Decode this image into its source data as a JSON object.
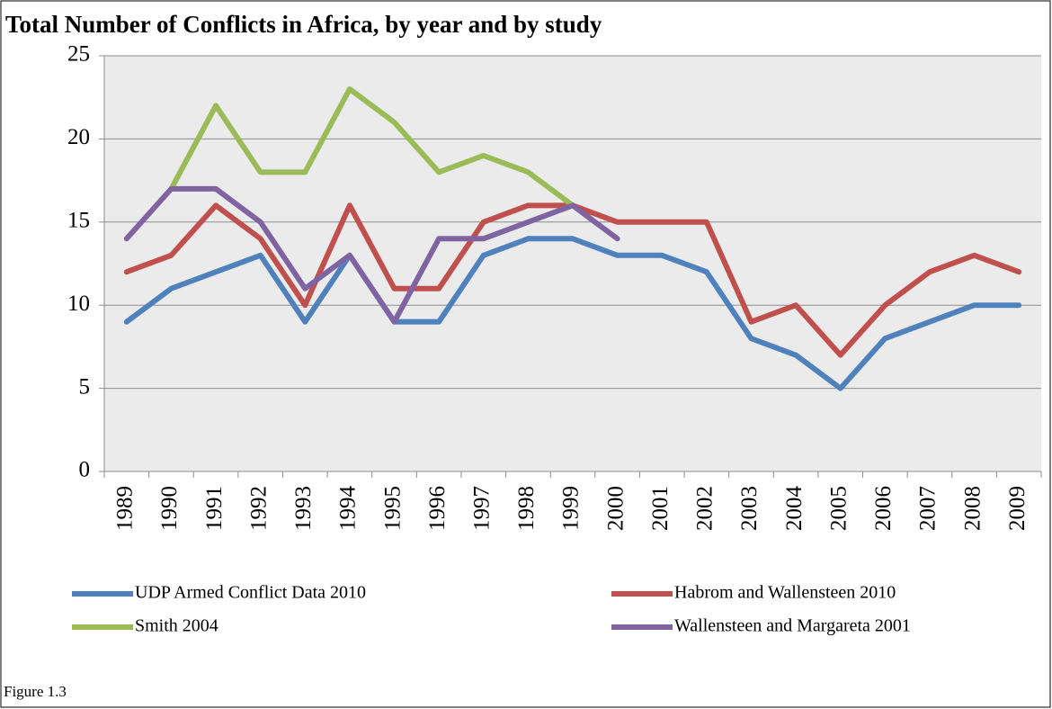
{
  "chart_data": {
    "type": "line",
    "title": "Total Number of Conflicts in Africa, by year and by study",
    "caption": "Figure 1.3",
    "categories": [
      "1989",
      "1990",
      "1991",
      "1992",
      "1993",
      "1994",
      "1995",
      "1996",
      "1997",
      "1998",
      "1999",
      "2000",
      "2001",
      "2002",
      "2003",
      "2004",
      "2005",
      "2006",
      "2007",
      "2008",
      "2009"
    ],
    "series": [
      {
        "name": "UDP Armed Conflict Data 2010",
        "color": "#4f81bd",
        "values": [
          9,
          11,
          12,
          13,
          9,
          13,
          9,
          9,
          13,
          14,
          14,
          13,
          13,
          12,
          8,
          7,
          5,
          8,
          9,
          10,
          10
        ]
      },
      {
        "name": "Habrom and Wallensteen 2010",
        "color": "#c0504d",
        "values": [
          12,
          13,
          16,
          14,
          10,
          16,
          11,
          11,
          15,
          16,
          16,
          15,
          15,
          15,
          9,
          10,
          7,
          10,
          12,
          13,
          12
        ]
      },
      {
        "name": "Smith 2004",
        "color": "#9bbb59",
        "values": [
          null,
          17,
          22,
          18,
          18,
          23,
          21,
          18,
          19,
          18,
          16,
          null,
          null,
          null,
          null,
          null,
          null,
          null,
          null,
          null,
          null
        ]
      },
      {
        "name": "Wallensteen and Margareta 2001",
        "color": "#8064a2",
        "values": [
          14,
          17,
          17,
          15,
          11,
          13,
          9,
          14,
          14,
          15,
          16,
          14,
          null,
          null,
          null,
          null,
          null,
          null,
          null,
          null,
          null
        ]
      }
    ],
    "ylim": [
      0,
      25
    ],
    "yticks": [
      0,
      5,
      10,
      15,
      20,
      25
    ],
    "grid": true
  }
}
